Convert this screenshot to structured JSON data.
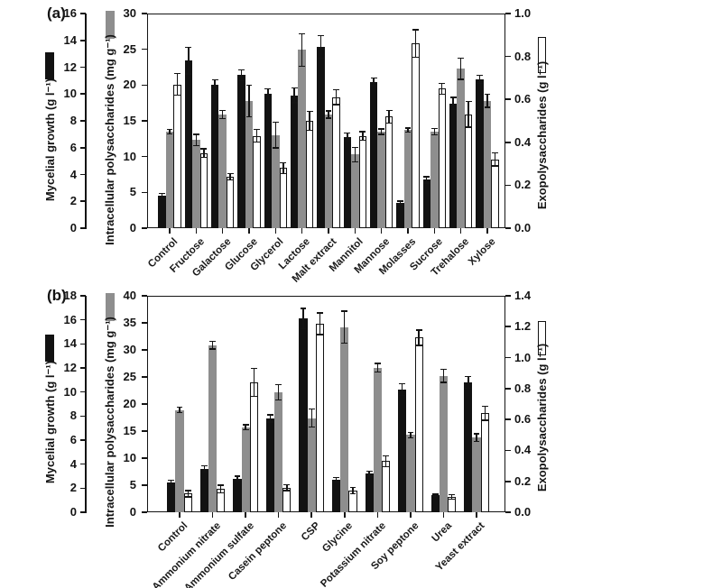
{
  "figure_background": "#ffffff",
  "chart_data": [
    {
      "type": "bar",
      "panel_label": "(a)",
      "grid": false,
      "legend_position": "swatches beside rotated axis titles",
      "categories": [
        "Control",
        "Fructose",
        "Galactose",
        "Glucose",
        "Glycerol",
        "Lactose",
        "Malt extract",
        "Mannitol",
        "Mannose",
        "Molasses",
        "Sucrose",
        "Trehalose",
        "Xylose"
      ],
      "axes": {
        "left1": {
          "label": "Mycelial growth (g l⁻¹)",
          "range": [
            0,
            16
          ],
          "step": 2,
          "decimals": 0
        },
        "left2": {
          "label": "Intracellular polysaccharides (mg g⁻¹)",
          "range": [
            0,
            30
          ],
          "step": 5,
          "decimals": 0
        },
        "right": {
          "label": "Exopolysaccharides (g l⁻¹)",
          "range": [
            0,
            1.0
          ],
          "step": 0.2,
          "decimals": 1
        }
      },
      "series": [
        {
          "name": "Mycelial growth (g l⁻¹)",
          "axis": "left1",
          "color": "#121212",
          "border": "#121212",
          "values": [
            2.4,
            12.5,
            10.7,
            11.4,
            10.0,
            9.9,
            13.5,
            6.8,
            10.9,
            1.9,
            3.6,
            9.3,
            11.1
          ],
          "errors": [
            0.2,
            1.0,
            0.35,
            0.4,
            0.4,
            0.55,
            0.85,
            0.3,
            0.3,
            0.12,
            0.25,
            0.45,
            0.3
          ]
        },
        {
          "name": "Intracellular polysaccharides (mg g⁻¹)",
          "axis": "left2",
          "color": "#8e8e8e",
          "border": "#8e8e8e",
          "values": [
            13.5,
            12.3,
            15.9,
            17.8,
            13.0,
            24.9,
            15.9,
            10.3,
            13.5,
            13.7,
            13.5,
            22.3,
            17.8
          ],
          "errors": [
            0.35,
            0.8,
            0.6,
            2.2,
            1.8,
            2.3,
            0.5,
            1.0,
            0.4,
            0.3,
            0.45,
            1.5,
            0.9
          ]
        },
        {
          "name": "Exopolysaccharides (g l⁻¹)",
          "axis": "right",
          "color": "#ffffff",
          "border": "#121212",
          "values": [
            0.67,
            0.35,
            0.24,
            0.43,
            0.28,
            0.5,
            0.61,
            0.43,
            0.52,
            0.86,
            0.65,
            0.53,
            0.32
          ],
          "errors": [
            0.05,
            0.02,
            0.015,
            0.03,
            0.025,
            0.045,
            0.035,
            0.02,
            0.03,
            0.065,
            0.025,
            0.06,
            0.03
          ]
        }
      ]
    },
    {
      "type": "bar",
      "panel_label": "(b)",
      "grid": false,
      "legend_position": "swatches beside rotated axis titles",
      "categories": [
        "Control",
        "Ammonium nitrate",
        "Ammonium sulfate",
        "Casein peptone",
        "CSP",
        "Glycine",
        "Potassium nitrate",
        "Soy peptone",
        "Urea",
        "Yeast extract"
      ],
      "axes": {
        "left1": {
          "label": "Mycelial growth (g l⁻¹)",
          "range": [
            0,
            18
          ],
          "step": 2,
          "decimals": 0
        },
        "left2": {
          "label": "Intracellular polysaccharides (mg g⁻¹)",
          "range": [
            0,
            40
          ],
          "step": 5,
          "decimals": 0
        },
        "right": {
          "label": "Exopolysaccharides (g l⁻¹)",
          "range": [
            0,
            1.4
          ],
          "step": 0.2,
          "decimals": 1
        }
      },
      "series": [
        {
          "name": "Mycelial growth (g l⁻¹)",
          "axis": "left1",
          "color": "#121212",
          "border": "#121212",
          "values": [
            2.5,
            3.6,
            2.8,
            7.8,
            16.1,
            2.7,
            3.2,
            10.2,
            1.4,
            10.8
          ],
          "errors": [
            0.15,
            0.25,
            0.2,
            0.3,
            0.85,
            0.2,
            0.2,
            0.5,
            0.1,
            0.5
          ]
        },
        {
          "name": "Intracellular polysaccharides (mg g⁻¹)",
          "axis": "left2",
          "color": "#8e8e8e",
          "border": "#8e8e8e",
          "values": [
            18.9,
            30.9,
            15.7,
            22.2,
            17.4,
            34.2,
            26.7,
            14.3,
            25.2,
            13.8
          ],
          "errors": [
            0.5,
            0.75,
            0.5,
            1.4,
            1.7,
            3.0,
            0.8,
            0.5,
            1.2,
            0.7
          ]
        },
        {
          "name": "Exopolysaccharides (g l⁻¹)",
          "axis": "right",
          "color": "#ffffff",
          "border": "#121212",
          "values": [
            0.12,
            0.15,
            0.84,
            0.16,
            1.22,
            0.14,
            0.33,
            1.13,
            0.1,
            0.64
          ],
          "errors": [
            0.02,
            0.025,
            0.09,
            0.02,
            0.07,
            0.02,
            0.035,
            0.05,
            0.015,
            0.045
          ]
        }
      ]
    }
  ]
}
